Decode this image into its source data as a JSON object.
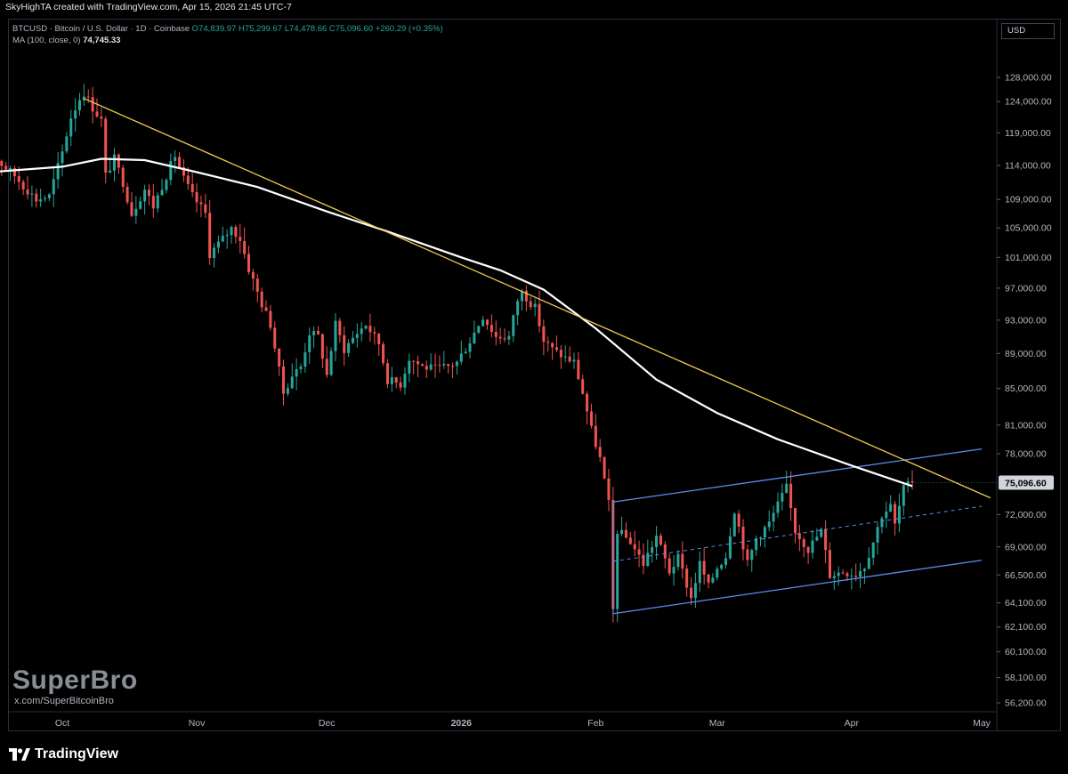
{
  "header": {
    "created_by": "SkyHighTA created with TradingView.com, Apr 15, 2026 21:45 UTC-7",
    "symbol_line": "BTCUSD · Bitcoin / U.S. Dollar · 1D · Coinbase",
    "open": "O74,839.97",
    "high": "H75,299.67",
    "low": "L74,478.66",
    "close": "C75,096.60",
    "change": "+260.29 (+0.35%)",
    "ma_label": "MA (100, close, 0)",
    "ma_value": "74,745.33",
    "currency": "USD"
  },
  "watermark": {
    "name": "SuperBro",
    "handle": "x.com/SuperBitcoinBro"
  },
  "footer": {
    "brand": "TradingView"
  },
  "colors": {
    "up": "#26a69a",
    "down": "#ef5350",
    "trendline": "#f0c94d",
    "ma": "#ffffff",
    "channel": "#5b8def"
  },
  "chart_data": {
    "type": "candlestick",
    "scale": "log",
    "y_ticks": [
      128000,
      124000,
      119000,
      114000,
      109000,
      105000,
      101000,
      97000,
      93000,
      89000,
      85000,
      81000,
      78000,
      72000,
      69000,
      66500,
      64100,
      62100,
      60100,
      58100,
      56200
    ],
    "y_tick_labels": [
      "128,000.00",
      "124,000.00",
      "119,000.00",
      "114,000.00",
      "109,000.00",
      "105,000.00",
      "101,000.00",
      "97,000.00",
      "93,000.00",
      "89,000.00",
      "85,000.00",
      "81,000.00",
      "78,000.00",
      "72,000.00",
      "69,000.00",
      "66,500.00",
      "64,100.00",
      "62,100.00",
      "60,100.00",
      "58,100.00",
      "56,200.00"
    ],
    "x_ticks": [
      {
        "date": "2025-10-01",
        "label": "Oct"
      },
      {
        "date": "2025-11-01",
        "label": "Nov"
      },
      {
        "date": "2025-12-01",
        "label": "Dec"
      },
      {
        "date": "2026-01-01",
        "label": "2026"
      },
      {
        "date": "2026-02-01",
        "label": "Feb"
      },
      {
        "date": "2026-03-01",
        "label": "Mar"
      },
      {
        "date": "2026-04-01",
        "label": "Apr"
      },
      {
        "date": "2026-05-01",
        "label": "May"
      }
    ],
    "last_price": 75096.6,
    "last_price_label": "75,096.60",
    "close_path": [
      [
        "2025-09-12",
        115500
      ],
      [
        "2025-09-16",
        114800
      ],
      [
        "2025-09-20",
        112500
      ],
      [
        "2025-09-22",
        111000
      ],
      [
        "2025-09-25",
        109000
      ],
      [
        "2025-09-28",
        109500
      ],
      [
        "2025-10-01",
        116000
      ],
      [
        "2025-10-03",
        121500
      ],
      [
        "2025-10-05",
        124500
      ],
      [
        "2025-10-06",
        125500
      ],
      [
        "2025-10-08",
        123000
      ],
      [
        "2025-10-10",
        121000
      ],
      [
        "2025-10-11",
        112500
      ],
      [
        "2025-10-13",
        115000
      ],
      [
        "2025-10-15",
        111500
      ],
      [
        "2025-10-17",
        107000
      ],
      [
        "2025-10-20",
        110500
      ],
      [
        "2025-10-22",
        108000
      ],
      [
        "2025-10-24",
        111000
      ],
      [
        "2025-10-27",
        115500
      ],
      [
        "2025-10-29",
        112000
      ],
      [
        "2025-10-31",
        109500
      ],
      [
        "2025-11-03",
        107000
      ],
      [
        "2025-11-04",
        101500
      ],
      [
        "2025-11-07",
        103500
      ],
      [
        "2025-11-09",
        105000
      ],
      [
        "2025-11-11",
        103500
      ],
      [
        "2025-11-13",
        99500
      ],
      [
        "2025-11-16",
        95000
      ],
      [
        "2025-11-18",
        92500
      ],
      [
        "2025-11-20",
        87000
      ],
      [
        "2025-11-21",
        84500
      ],
      [
        "2025-11-23",
        86500
      ],
      [
        "2025-11-25",
        87500
      ],
      [
        "2025-11-27",
        91500
      ],
      [
        "2025-11-29",
        91000
      ],
      [
        "2025-12-01",
        86500
      ],
      [
        "2025-12-03",
        92500
      ],
      [
        "2025-12-05",
        89500
      ],
      [
        "2025-12-08",
        91500
      ],
      [
        "2025-12-10",
        92500
      ],
      [
        "2025-12-13",
        90200
      ],
      [
        "2025-12-15",
        86000
      ],
      [
        "2025-12-18",
        85500
      ],
      [
        "2025-12-20",
        88500
      ],
      [
        "2025-12-23",
        87500
      ],
      [
        "2025-12-26",
        87200
      ],
      [
        "2025-12-29",
        87500
      ],
      [
        "2025-12-31",
        88000
      ],
      [
        "2026-01-03",
        90500
      ],
      [
        "2026-01-06",
        93500
      ],
      [
        "2026-01-09",
        91000
      ],
      [
        "2026-01-12",
        91000
      ],
      [
        "2026-01-14",
        95500
      ],
      [
        "2026-01-15",
        96500
      ],
      [
        "2026-01-18",
        94500
      ],
      [
        "2026-01-20",
        90500
      ],
      [
        "2026-01-22",
        89500
      ],
      [
        "2026-01-25",
        88500
      ],
      [
        "2026-01-27",
        88000
      ],
      [
        "2026-01-29",
        84500
      ],
      [
        "2026-01-31",
        80500
      ],
      [
        "2026-02-02",
        77500
      ],
      [
        "2026-02-04",
        73000
      ],
      [
        "2026-02-05",
        63500
      ],
      [
        "2026-02-06",
        70500
      ],
      [
        "2026-02-09",
        69500
      ],
      [
        "2026-02-12",
        67500
      ],
      [
        "2026-02-15",
        70000
      ],
      [
        "2026-02-18",
        66800
      ],
      [
        "2026-02-20",
        68000
      ],
      [
        "2026-02-23",
        64500
      ],
      [
        "2026-02-25",
        67500
      ],
      [
        "2026-02-27",
        65500
      ],
      [
        "2026-03-01",
        67200
      ],
      [
        "2026-03-03",
        68200
      ],
      [
        "2026-03-05",
        72500
      ],
      [
        "2026-03-08",
        67500
      ],
      [
        "2026-03-10",
        69800
      ],
      [
        "2026-03-13",
        71200
      ],
      [
        "2026-03-16",
        73800
      ],
      [
        "2026-03-17",
        74600
      ],
      [
        "2026-03-19",
        70500
      ],
      [
        "2026-03-22",
        68800
      ],
      [
        "2026-03-25",
        70500
      ],
      [
        "2026-03-27",
        66500
      ],
      [
        "2026-03-30",
        66800
      ],
      [
        "2026-04-02",
        66600
      ],
      [
        "2026-04-04",
        67300
      ],
      [
        "2026-04-06",
        69500
      ],
      [
        "2026-04-08",
        72000
      ],
      [
        "2026-04-10",
        72800
      ],
      [
        "2026-04-11",
        71000
      ],
      [
        "2026-04-13",
        74500
      ],
      [
        "2026-04-15",
        75096
      ]
    ],
    "ma_path": [
      [
        "2025-09-10",
        112800
      ],
      [
        "2025-10-01",
        113800
      ],
      [
        "2025-10-10",
        115000
      ],
      [
        "2025-10-20",
        114800
      ],
      [
        "2025-11-01",
        113000
      ],
      [
        "2025-11-15",
        110800
      ],
      [
        "2025-12-01",
        107300
      ],
      [
        "2025-12-15",
        104500
      ],
      [
        "2026-01-01",
        101000
      ],
      [
        "2026-01-10",
        99300
      ],
      [
        "2026-01-20",
        96800
      ],
      [
        "2026-02-01",
        92000
      ],
      [
        "2026-02-15",
        86000
      ],
      [
        "2026-03-01",
        82300
      ],
      [
        "2026-03-15",
        79500
      ],
      [
        "2026-04-01",
        76800
      ],
      [
        "2026-04-15",
        74745
      ]
    ],
    "trendline": [
      [
        "2025-10-06",
        124500
      ],
      [
        "2026-05-03",
        73600
      ]
    ],
    "channel_upper": [
      [
        "2026-02-05",
        73200
      ],
      [
        "2026-05-01",
        78500
      ]
    ],
    "channel_mid": [
      [
        "2026-02-05",
        67700
      ],
      [
        "2026-05-01",
        72800
      ]
    ],
    "channel_lower": [
      [
        "2026-02-05",
        63200
      ],
      [
        "2026-05-01",
        67800
      ]
    ]
  }
}
